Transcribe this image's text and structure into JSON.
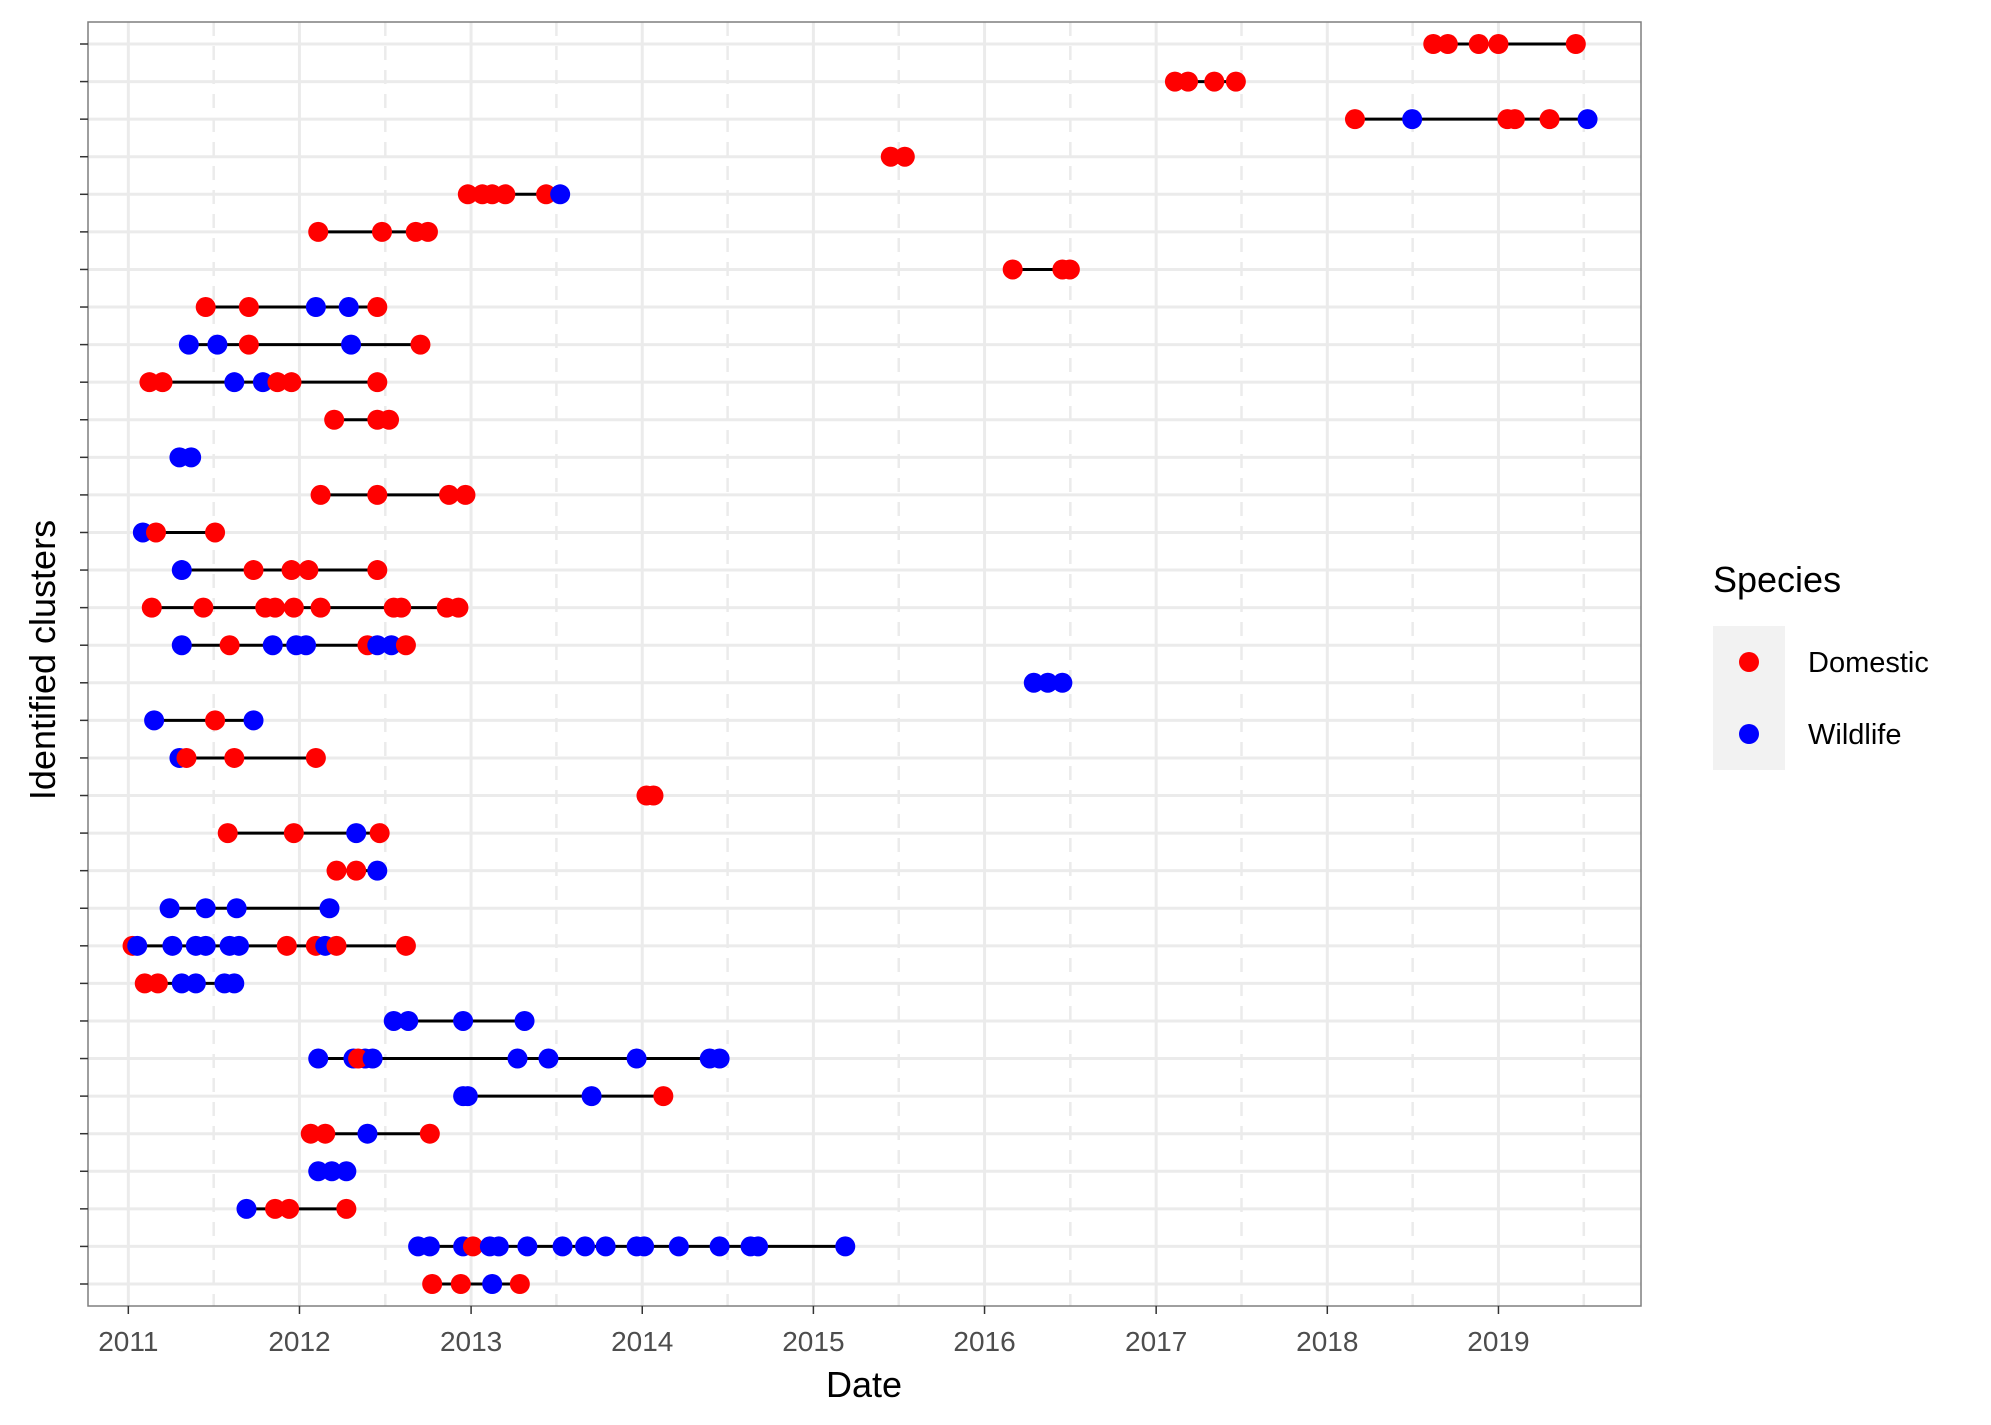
{
  "chart_data": {
    "type": "scatter",
    "xlabel": "Date",
    "ylabel": "Identified clusters",
    "x_ticks": [
      "2011",
      "2012",
      "2013",
      "2014",
      "2015",
      "2016",
      "2017",
      "2018",
      "2019"
    ],
    "xlim": [
      "2010-10-07",
      "2019-11-01"
    ],
    "grid": true,
    "legend": {
      "title": "Species",
      "position": "right",
      "entries": [
        {
          "label": "Domestic",
          "color": "#ff0000"
        },
        {
          "label": "Wildlife",
          "color": "#0000ff"
        }
      ]
    },
    "colors": {
      "Domestic": "#ff0000",
      "Wildlife": "#0000ff",
      "line": "#000000",
      "grid": "#ebebeb",
      "panel_border": "#7f7f7f"
    },
    "clusters": [
      {
        "points": [
          [
            "2018-08-15",
            "Domestic"
          ],
          [
            "2018-09-15",
            "Domestic"
          ],
          [
            "2018-11-20",
            "Domestic"
          ],
          [
            "2019-01-01",
            "Domestic"
          ],
          [
            "2019-06-15",
            "Domestic"
          ]
        ]
      },
      {
        "points": [
          [
            "2017-02-10",
            "Domestic"
          ],
          [
            "2017-03-10",
            "Domestic"
          ],
          [
            "2017-05-05",
            "Domestic"
          ],
          [
            "2017-06-20",
            "Domestic"
          ]
        ]
      },
      {
        "points": [
          [
            "2018-03-01",
            "Domestic"
          ],
          [
            "2018-07-01",
            "Wildlife"
          ],
          [
            "2019-01-20",
            "Domestic"
          ],
          [
            "2019-02-05",
            "Domestic"
          ],
          [
            "2019-04-20",
            "Domestic"
          ],
          [
            "2019-07-10",
            "Wildlife"
          ]
        ]
      },
      {
        "points": [
          [
            "2015-06-15",
            "Domestic"
          ],
          [
            "2015-07-15",
            "Domestic"
          ]
        ]
      },
      {
        "points": [
          [
            "2012-12-25",
            "Domestic"
          ],
          [
            "2013-01-25",
            "Domestic"
          ],
          [
            "2013-02-15",
            "Domestic"
          ],
          [
            "2013-03-15",
            "Domestic"
          ],
          [
            "2013-06-10",
            "Domestic"
          ],
          [
            "2013-07-10",
            "Wildlife"
          ]
        ]
      },
      {
        "points": [
          [
            "2012-02-10",
            "Domestic"
          ],
          [
            "2012-06-25",
            "Domestic"
          ],
          [
            "2012-09-05",
            "Domestic"
          ],
          [
            "2012-10-01",
            "Domestic"
          ]
        ]
      },
      {
        "points": [
          [
            "2016-03-01",
            "Domestic"
          ],
          [
            "2016-06-15",
            "Domestic"
          ],
          [
            "2016-07-01",
            "Domestic"
          ]
        ]
      },
      {
        "points": [
          [
            "2011-06-15",
            "Domestic"
          ],
          [
            "2011-09-15",
            "Domestic"
          ],
          [
            "2012-02-05",
            "Wildlife"
          ],
          [
            "2012-04-15",
            "Wildlife"
          ],
          [
            "2012-06-15",
            "Domestic"
          ]
        ]
      },
      {
        "points": [
          [
            "2011-05-10",
            "Wildlife"
          ],
          [
            "2011-07-10",
            "Wildlife"
          ],
          [
            "2011-09-15",
            "Domestic"
          ],
          [
            "2012-04-20",
            "Wildlife"
          ],
          [
            "2012-09-15",
            "Domestic"
          ]
        ]
      },
      {
        "points": [
          [
            "2011-02-15",
            "Domestic"
          ],
          [
            "2011-03-15",
            "Domestic"
          ],
          [
            "2011-08-15",
            "Wildlife"
          ],
          [
            "2011-10-15",
            "Wildlife"
          ],
          [
            "2011-11-15",
            "Domestic"
          ],
          [
            "2011-12-15",
            "Domestic"
          ],
          [
            "2012-06-15",
            "Domestic"
          ]
        ]
      },
      {
        "points": [
          [
            "2012-03-15",
            "Domestic"
          ],
          [
            "2012-06-15",
            "Domestic"
          ],
          [
            "2012-07-10",
            "Domestic"
          ]
        ]
      },
      {
        "points": [
          [
            "2011-04-20",
            "Wildlife"
          ],
          [
            "2011-05-15",
            "Wildlife"
          ]
        ]
      },
      {
        "points": [
          [
            "2012-02-15",
            "Domestic"
          ],
          [
            "2012-06-15",
            "Domestic"
          ],
          [
            "2012-11-15",
            "Domestic"
          ],
          [
            "2012-12-20",
            "Domestic"
          ]
        ]
      },
      {
        "points": [
          [
            "2011-02-01",
            "Wildlife"
          ],
          [
            "2011-03-01",
            "Domestic"
          ],
          [
            "2011-07-05",
            "Domestic"
          ]
        ]
      },
      {
        "points": [
          [
            "2011-04-25",
            "Wildlife"
          ],
          [
            "2011-09-25",
            "Domestic"
          ],
          [
            "2011-12-15",
            "Domestic"
          ],
          [
            "2012-01-20",
            "Domestic"
          ],
          [
            "2012-06-15",
            "Domestic"
          ]
        ]
      },
      {
        "points": [
          [
            "2011-02-20",
            "Domestic"
          ],
          [
            "2011-06-10",
            "Domestic"
          ],
          [
            "2011-10-20",
            "Domestic"
          ],
          [
            "2011-11-10",
            "Domestic"
          ],
          [
            "2011-12-20",
            "Domestic"
          ],
          [
            "2012-02-15",
            "Domestic"
          ],
          [
            "2012-07-20",
            "Domestic"
          ],
          [
            "2012-08-05",
            "Domestic"
          ],
          [
            "2012-11-10",
            "Domestic"
          ],
          [
            "2012-12-05",
            "Domestic"
          ]
        ]
      },
      {
        "points": [
          [
            "2011-04-25",
            "Wildlife"
          ],
          [
            "2011-08-05",
            "Domestic"
          ],
          [
            "2011-11-05",
            "Wildlife"
          ],
          [
            "2011-12-25",
            "Wildlife"
          ],
          [
            "2012-01-15",
            "Wildlife"
          ],
          [
            "2012-05-25",
            "Domestic"
          ],
          [
            "2012-06-15",
            "Wildlife"
          ],
          [
            "2012-07-15",
            "Wildlife"
          ],
          [
            "2012-08-15",
            "Domestic"
          ]
        ]
      },
      {
        "points": [
          [
            "2016-04-15",
            "Wildlife"
          ],
          [
            "2016-05-15",
            "Wildlife"
          ],
          [
            "2016-06-15",
            "Wildlife"
          ]
        ]
      },
      {
        "points": [
          [
            "2011-02-25",
            "Wildlife"
          ],
          [
            "2011-07-05",
            "Domestic"
          ],
          [
            "2011-09-25",
            "Wildlife"
          ]
        ]
      },
      {
        "points": [
          [
            "2011-04-20",
            "Wildlife"
          ],
          [
            "2011-05-05",
            "Domestic"
          ],
          [
            "2011-08-15",
            "Domestic"
          ],
          [
            "2012-02-05",
            "Domestic"
          ]
        ]
      },
      {
        "points": [
          [
            "2014-01-10",
            "Domestic"
          ],
          [
            "2014-01-25",
            "Domestic"
          ]
        ]
      },
      {
        "points": [
          [
            "2011-08-01",
            "Domestic"
          ],
          [
            "2011-12-20",
            "Domestic"
          ],
          [
            "2012-05-01",
            "Wildlife"
          ],
          [
            "2012-06-20",
            "Domestic"
          ]
        ]
      },
      {
        "points": [
          [
            "2012-03-20",
            "Domestic"
          ],
          [
            "2012-05-01",
            "Domestic"
          ],
          [
            "2012-06-15",
            "Wildlife"
          ]
        ]
      },
      {
        "points": [
          [
            "2011-03-30",
            "Wildlife"
          ],
          [
            "2011-06-15",
            "Wildlife"
          ],
          [
            "2011-08-20",
            "Wildlife"
          ],
          [
            "2012-03-05",
            "Wildlife"
          ]
        ]
      },
      {
        "points": [
          [
            "2011-01-10",
            "Domestic"
          ],
          [
            "2011-01-20",
            "Wildlife"
          ],
          [
            "2011-04-05",
            "Wildlife"
          ],
          [
            "2011-05-25",
            "Wildlife"
          ],
          [
            "2011-06-15",
            "Wildlife"
          ],
          [
            "2011-08-05",
            "Wildlife"
          ],
          [
            "2011-08-25",
            "Wildlife"
          ],
          [
            "2011-12-05",
            "Domestic"
          ],
          [
            "2012-02-05",
            "Domestic"
          ],
          [
            "2012-02-25",
            "Wildlife"
          ],
          [
            "2012-03-20",
            "Domestic"
          ],
          [
            "2012-08-15",
            "Domestic"
          ]
        ]
      },
      {
        "points": [
          [
            "2011-02-05",
            "Domestic"
          ],
          [
            "2011-03-05",
            "Domestic"
          ],
          [
            "2011-04-25",
            "Wildlife"
          ],
          [
            "2011-05-25",
            "Wildlife"
          ],
          [
            "2011-07-25",
            "Wildlife"
          ],
          [
            "2011-08-15",
            "Wildlife"
          ]
        ]
      },
      {
        "points": [
          [
            "2012-07-20",
            "Wildlife"
          ],
          [
            "2012-08-20",
            "Wildlife"
          ],
          [
            "2012-12-15",
            "Wildlife"
          ],
          [
            "2013-04-25",
            "Wildlife"
          ]
        ]
      },
      {
        "points": [
          [
            "2012-02-10",
            "Wildlife"
          ],
          [
            "2012-04-25",
            "Wildlife"
          ],
          [
            "2012-05-20",
            "Wildlife"
          ],
          [
            "2012-05-05",
            "Domestic"
          ],
          [
            "2012-06-05",
            "Wildlife"
          ],
          [
            "2013-04-10",
            "Wildlife"
          ],
          [
            "2013-06-15",
            "Wildlife"
          ],
          [
            "2013-12-20",
            "Wildlife"
          ],
          [
            "2014-05-25",
            "Wildlife"
          ],
          [
            "2014-06-15",
            "Wildlife"
          ]
        ]
      },
      {
        "points": [
          [
            "2012-12-15",
            "Wildlife"
          ],
          [
            "2012-12-25",
            "Wildlife"
          ],
          [
            "2013-09-15",
            "Wildlife"
          ],
          [
            "2014-02-15",
            "Domestic"
          ]
        ]
      },
      {
        "points": [
          [
            "2012-01-25",
            "Domestic"
          ],
          [
            "2012-02-25",
            "Domestic"
          ],
          [
            "2012-05-25",
            "Wildlife"
          ],
          [
            "2012-10-05",
            "Domestic"
          ]
        ]
      },
      {
        "points": [
          [
            "2012-02-10",
            "Wildlife"
          ],
          [
            "2012-03-10",
            "Wildlife"
          ],
          [
            "2012-04-10",
            "Wildlife"
          ]
        ]
      },
      {
        "points": [
          [
            "2011-09-10",
            "Wildlife"
          ],
          [
            "2011-11-10",
            "Domestic"
          ],
          [
            "2011-12-10",
            "Domestic"
          ],
          [
            "2012-04-10",
            "Domestic"
          ]
        ]
      },
      {
        "points": [
          [
            "2012-09-10",
            "Wildlife"
          ],
          [
            "2012-10-05",
            "Wildlife"
          ],
          [
            "2012-12-15",
            "Wildlife"
          ],
          [
            "2013-01-05",
            "Domestic"
          ],
          [
            "2013-02-10",
            "Wildlife"
          ],
          [
            "2013-03-01",
            "Wildlife"
          ],
          [
            "2013-05-01",
            "Wildlife"
          ],
          [
            "2013-07-15",
            "Wildlife"
          ],
          [
            "2013-09-01",
            "Wildlife"
          ],
          [
            "2013-10-15",
            "Wildlife"
          ],
          [
            "2013-12-20",
            "Wildlife"
          ],
          [
            "2014-01-05",
            "Wildlife"
          ],
          [
            "2014-03-20",
            "Wildlife"
          ],
          [
            "2014-06-15",
            "Wildlife"
          ],
          [
            "2014-08-20",
            "Wildlife"
          ],
          [
            "2014-09-05",
            "Wildlife"
          ],
          [
            "2015-03-10",
            "Wildlife"
          ]
        ]
      },
      {
        "points": [
          [
            "2012-10-10",
            "Domestic"
          ],
          [
            "2012-12-10",
            "Domestic"
          ],
          [
            "2013-02-15",
            "Wildlife"
          ],
          [
            "2013-04-15",
            "Domestic"
          ]
        ]
      }
    ]
  }
}
